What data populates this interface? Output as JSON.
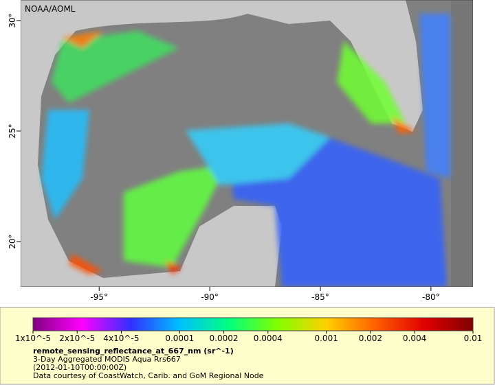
{
  "map": {
    "credit": "NOAA/AOML",
    "xlim": [
      -98.55,
      -78.1
    ],
    "ylim": [
      17.95,
      30.93
    ],
    "xticks": [
      {
        "value": -95,
        "label": "-95°"
      },
      {
        "value": -90,
        "label": "-90°"
      },
      {
        "value": -85,
        "label": "-85°"
      },
      {
        "value": -80,
        "label": "-80°"
      }
    ],
    "yticks": [
      {
        "value": 30,
        "label": "30°"
      },
      {
        "value": 25,
        "label": "25°"
      },
      {
        "value": 20,
        "label": "20°"
      }
    ]
  },
  "colorbar": {
    "scale": "log",
    "lim": [
      1e-05,
      0.01
    ],
    "colors": [
      "#7f007f",
      "#ff00ff",
      "#3030ff",
      "#00c0ff",
      "#00ff80",
      "#80ff00",
      "#ffd000",
      "#ff6000",
      "#e00000",
      "#800000"
    ],
    "ticks": [
      {
        "value": 1e-05,
        "label": "1x10^-5"
      },
      {
        "value": 2e-05,
        "label": "2x10^-5"
      },
      {
        "value": 4e-05,
        "label": "4x10^-5"
      },
      0.0001,
      0.0002,
      0.0004,
      0.001,
      0.002,
      0.004,
      0.01
    ]
  },
  "legend": {
    "title": "remote_sensing_reflectance_at_667_nm (sr^-1)",
    "lines": [
      "3-Day Aggregated MODIS Aqua Rrs667",
      "(2012-01-10T00:00:00Z)",
      "Data courtesy of CoastWatch, Carib. and GoM Regional Node"
    ]
  }
}
